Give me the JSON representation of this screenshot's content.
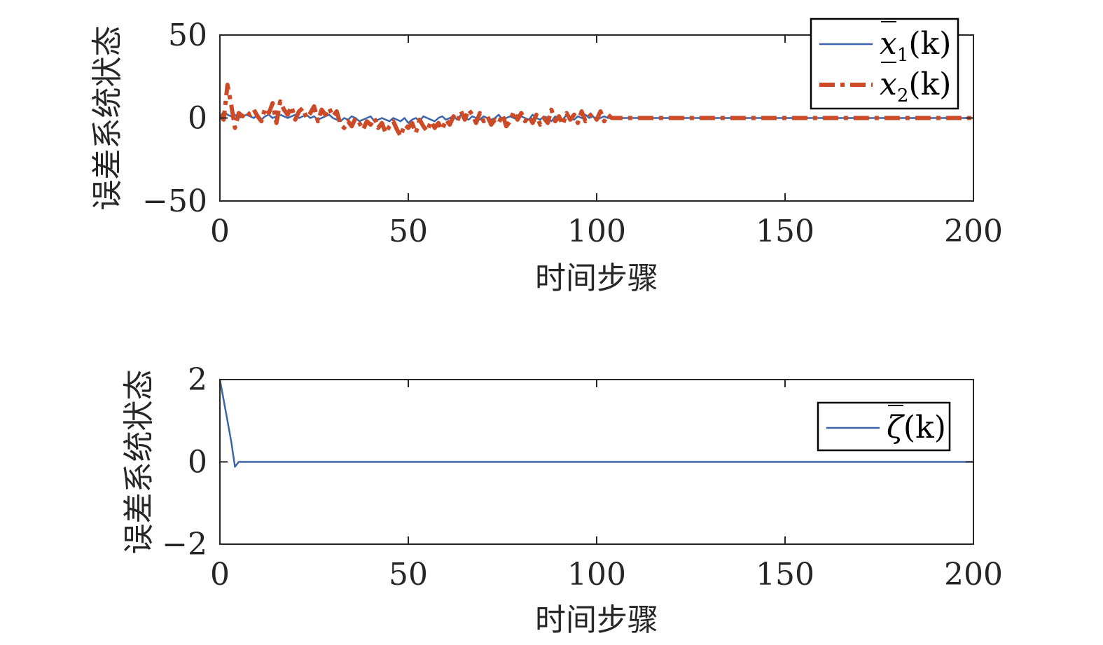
{
  "colors": {
    "series_1": "#3c64a8",
    "series_2": "#cc4a25",
    "axis": "#262626"
  },
  "chart_data": [
    {
      "type": "line",
      "ylabel": "误差系统状态",
      "xlabel": "时间步骤",
      "xlim": [
        0,
        200
      ],
      "ylim": [
        -50,
        50
      ],
      "xticks": [
        0,
        50,
        100,
        150,
        200
      ],
      "yticks": [
        -50,
        0,
        50
      ],
      "xtick_labels": [
        "0",
        "50",
        "100",
        "150",
        "200"
      ],
      "ytick_labels": [
        "−50",
        "0",
        "50"
      ],
      "grid": false,
      "legend_position": "top-right",
      "x": [
        0,
        1,
        2,
        3,
        4,
        5,
        6,
        7,
        8,
        9,
        10,
        11,
        12,
        13,
        14,
        15,
        16,
        17,
        18,
        19,
        20,
        21,
        22,
        23,
        24,
        25,
        26,
        27,
        28,
        29,
        30,
        31,
        32,
        33,
        34,
        35,
        36,
        37,
        38,
        39,
        40,
        41,
        42,
        43,
        44,
        45,
        46,
        47,
        48,
        49,
        50,
        51,
        52,
        53,
        54,
        55,
        56,
        57,
        58,
        59,
        60,
        61,
        62,
        63,
        64,
        65,
        66,
        67,
        68,
        69,
        70,
        71,
        72,
        73,
        74,
        75,
        76,
        77,
        78,
        79,
        80,
        81,
        82,
        83,
        84,
        85,
        86,
        87,
        88,
        89,
        90,
        91,
        92,
        93,
        94,
        95,
        96,
        97,
        98,
        99,
        100,
        101,
        102,
        103,
        104,
        105,
        110,
        120,
        130,
        140,
        150,
        160,
        170,
        180,
        190,
        200
      ],
      "series": [
        {
          "name_main": "x",
          "name_sub": "1",
          "name_arg": "(k)",
          "style": "solid",
          "values": [
            0,
            4,
            2,
            1,
            2,
            0,
            1,
            2,
            1,
            0,
            2,
            -1,
            1,
            2,
            0,
            1,
            2,
            1,
            0,
            1,
            2,
            0,
            1,
            2,
            0,
            1,
            -1,
            0,
            1,
            2,
            0,
            -1,
            -2,
            0,
            -1,
            1,
            0,
            -2,
            -1,
            0,
            1,
            -2,
            -1,
            0,
            -1,
            -2,
            0,
            -1,
            -2,
            0,
            -3,
            -1,
            0,
            -2,
            1,
            0,
            -1,
            -2,
            0,
            1,
            -1,
            0,
            1,
            -1,
            2,
            0,
            -1,
            1,
            0,
            -1,
            1,
            0,
            -1,
            0,
            2,
            -1,
            0,
            1,
            0,
            -1,
            1,
            0,
            -1,
            2,
            0,
            -1,
            1,
            0,
            -2,
            1,
            0,
            -1,
            2,
            0,
            -1,
            1,
            0,
            2,
            0,
            1,
            -1,
            0,
            1,
            0,
            0,
            0,
            0,
            0,
            0,
            0,
            0,
            0,
            0,
            0,
            0,
            0
          ]
        },
        {
          "name_main": "x",
          "name_sub": "2",
          "name_arg": "(k)",
          "style": "dashdot",
          "values": [
            2,
            -1,
            20,
            8,
            -6,
            3,
            1,
            4,
            2,
            5,
            1,
            -2,
            6,
            3,
            9,
            -3,
            10,
            5,
            2,
            7,
            -1,
            4,
            6,
            0,
            3,
            7,
            -2,
            5,
            2,
            6,
            1,
            4,
            -4,
            -6,
            -2,
            -5,
            0,
            -3,
            -7,
            -2,
            -4,
            0,
            -6,
            -3,
            -9,
            -5,
            -2,
            -7,
            -11,
            -4,
            -6,
            -3,
            -9,
            -1,
            -5,
            -8,
            -2,
            -6,
            -3,
            -7,
            -1,
            -4,
            1,
            -2,
            4,
            -1,
            5,
            2,
            -3,
            3,
            -2,
            1,
            -4,
            -1,
            -3,
            2,
            -5,
            -2,
            4,
            -1,
            3,
            -2,
            1,
            -3,
            2,
            -4,
            0,
            -3,
            5,
            -2,
            1,
            -4,
            3,
            -1,
            2,
            -3,
            4,
            -2,
            1,
            3,
            -1,
            4,
            -2,
            2,
            0,
            0,
            0,
            0,
            0,
            0,
            0,
            0,
            0,
            0,
            0,
            0
          ]
        }
      ]
    },
    {
      "type": "line",
      "ylabel": "误差系统状态",
      "xlabel": "时间步骤",
      "xlim": [
        0,
        200
      ],
      "ylim": [
        -2,
        2
      ],
      "xticks": [
        0,
        50,
        100,
        150,
        200
      ],
      "yticks": [
        -2,
        0,
        2
      ],
      "xtick_labels": [
        "0",
        "50",
        "100",
        "150",
        "200"
      ],
      "ytick_labels": [
        "−2",
        "0",
        "2"
      ],
      "grid": false,
      "legend_position": "top-right",
      "x": [
        0,
        1,
        2,
        3,
        4,
        5,
        6,
        8,
        10,
        20,
        50,
        100,
        150,
        200
      ],
      "series": [
        {
          "name_main": "ζ",
          "name_sub": "",
          "name_arg": "(k)",
          "style": "solid",
          "values": [
            2,
            1.5,
            1,
            0.5,
            -0.12,
            0,
            0,
            0,
            0,
            0,
            0,
            0,
            0,
            0
          ]
        }
      ]
    }
  ]
}
